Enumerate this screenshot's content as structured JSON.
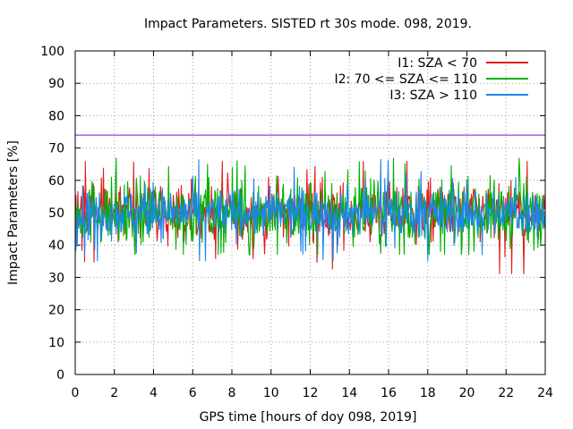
{
  "chart_data": {
    "type": "line",
    "title": "Impact Parameters. SISTED rt 30s mode. 098, 2019.",
    "xlabel": "GPS time [hours of doy 098, 2019]",
    "ylabel": "Impact Parameters [%]",
    "xlim": [
      0,
      24
    ],
    "ylim": [
      0,
      100
    ],
    "xticks": [
      0,
      2,
      4,
      6,
      8,
      10,
      12,
      14,
      16,
      18,
      20,
      22,
      24
    ],
    "yticks": [
      0,
      10,
      20,
      30,
      40,
      50,
      60,
      70,
      80,
      90,
      100
    ],
    "grid": true,
    "legend_position": "top-right",
    "threshold_line": {
      "y": 74,
      "color": "#9400d3"
    },
    "series": [
      {
        "name": "I1: SZA < 70",
        "color": "#e41a1c",
        "mean": 50,
        "typical_range": [
          42,
          60
        ],
        "extremes": [
          31,
          66
        ]
      },
      {
        "name": "I2: 70 <= SZA <= 110",
        "color": "#00b000",
        "mean": 50,
        "typical_range": [
          41,
          61
        ],
        "extremes": [
          37,
          67
        ]
      },
      {
        "name": "I3: SZA > 110",
        "color": "#1c86ee",
        "mean": 50,
        "typical_range": [
          43,
          58
        ],
        "extremes": [
          35,
          67
        ]
      }
    ]
  }
}
